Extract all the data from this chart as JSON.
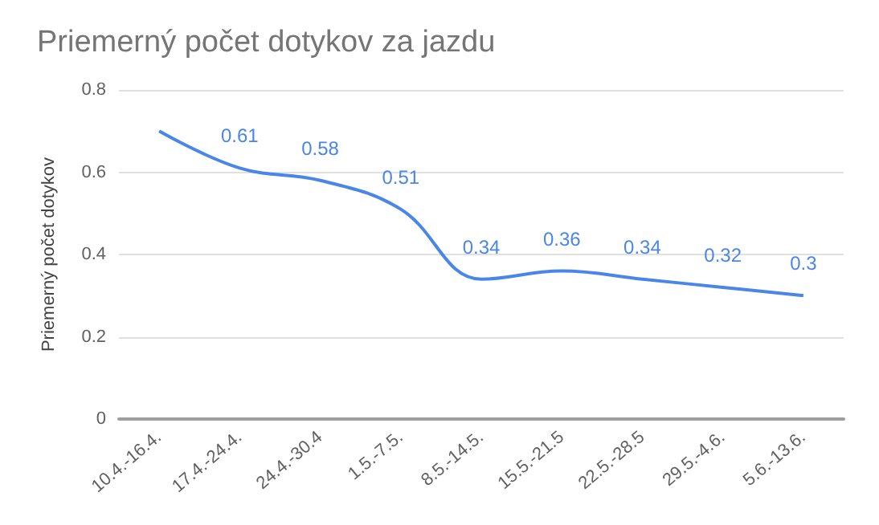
{
  "chart_data": {
    "type": "line",
    "title": "Priemerný počet dotykov za jazdu",
    "ylabel": "Priemerný počet dotykov",
    "categories": [
      "10.4.-16.4.",
      "17.4.-24.4.",
      "24.4.-30.4",
      "1.5.-7.5.",
      "8.5.-14.5.",
      "15.5.-21.5",
      "22.5.-28.5",
      "29.5.-4.6.",
      "5.6.-13.6."
    ],
    "series": [
      {
        "color": "#4a86e8",
        "values": [
          0.7,
          0.61,
          0.58,
          0.51,
          0.34,
          0.36,
          0.34,
          0.32,
          0.3
        ],
        "value_labels": [
          null,
          "0.61",
          "0.58",
          "0.51",
          "0.34",
          "0.36",
          "0.34",
          "0.32",
          "0.3"
        ]
      }
    ],
    "ylim": [
      0,
      0.8
    ],
    "yticks": [
      0,
      0.2,
      0.4,
      0.6,
      0.8
    ],
    "grid": "y",
    "marker": "none",
    "line_style": "solid"
  }
}
